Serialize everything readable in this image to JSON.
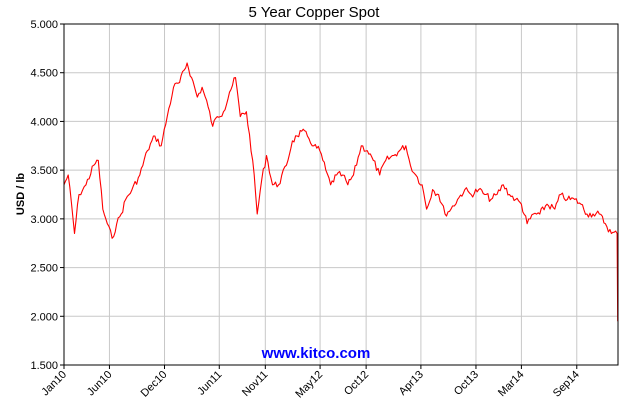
{
  "chart_data": {
    "type": "line",
    "title": "5 Year Copper Spot",
    "xlabel": "",
    "ylabel": "USD / lb",
    "ylim": [
      1.5,
      5.0
    ],
    "yticks": [
      "1.500",
      "2.000",
      "2.500",
      "3.000",
      "3.500",
      "4.000",
      "4.500",
      "5.000"
    ],
    "xticks": [
      "Jan10",
      "Jun10",
      "Dec10",
      "Jun11",
      "Nov11",
      "May12",
      "Oct12",
      "Apr13",
      "Oct13",
      "Mar14",
      "Sep14"
    ],
    "grid": true,
    "watermark": "www.kitco.com",
    "colors": {
      "series": "#ff0000",
      "grid": "#c8c8c8",
      "watermark": "#0000ff",
      "axis": "#000000"
    },
    "series": [
      {
        "name": "",
        "points": [
          [
            "2010-01-01",
            3.35
          ],
          [
            "2010-01-15",
            3.45
          ],
          [
            "2010-02-05",
            2.85
          ],
          [
            "2010-02-20",
            3.25
          ],
          [
            "2010-03-15",
            3.35
          ],
          [
            "2010-04-10",
            3.55
          ],
          [
            "2010-04-25",
            3.6
          ],
          [
            "2010-05-10",
            3.1
          ],
          [
            "2010-05-25",
            2.95
          ],
          [
            "2010-06-10",
            2.8
          ],
          [
            "2010-06-25",
            2.95
          ],
          [
            "2010-07-10",
            3.05
          ],
          [
            "2010-07-25",
            3.2
          ],
          [
            "2010-08-15",
            3.3
          ],
          [
            "2010-09-10",
            3.45
          ],
          [
            "2010-10-05",
            3.7
          ],
          [
            "2010-10-30",
            3.85
          ],
          [
            "2010-11-20",
            3.75
          ],
          [
            "2010-12-10",
            4.05
          ],
          [
            "2010-12-31",
            4.35
          ],
          [
            "2011-01-20",
            4.4
          ],
          [
            "2011-02-14",
            4.6
          ],
          [
            "2011-03-01",
            4.45
          ],
          [
            "2011-03-20",
            4.25
          ],
          [
            "2011-04-05",
            4.35
          ],
          [
            "2011-04-25",
            4.15
          ],
          [
            "2011-05-10",
            3.95
          ],
          [
            "2011-05-25",
            4.05
          ],
          [
            "2011-06-15",
            4.1
          ],
          [
            "2011-07-05",
            4.3
          ],
          [
            "2011-07-25",
            4.45
          ],
          [
            "2011-08-10",
            4.05
          ],
          [
            "2011-08-30",
            4.1
          ],
          [
            "2011-09-20",
            3.6
          ],
          [
            "2011-10-05",
            3.05
          ],
          [
            "2011-10-20",
            3.4
          ],
          [
            "2011-11-05",
            3.65
          ],
          [
            "2011-11-25",
            3.35
          ],
          [
            "2011-12-15",
            3.35
          ],
          [
            "2012-01-10",
            3.55
          ],
          [
            "2012-01-30",
            3.8
          ],
          [
            "2012-02-15",
            3.85
          ],
          [
            "2012-03-01",
            3.9
          ],
          [
            "2012-03-20",
            3.85
          ],
          [
            "2012-04-10",
            3.75
          ],
          [
            "2012-04-30",
            3.7
          ],
          [
            "2012-05-20",
            3.5
          ],
          [
            "2012-06-05",
            3.35
          ],
          [
            "2012-06-25",
            3.45
          ],
          [
            "2012-07-15",
            3.45
          ],
          [
            "2012-08-01",
            3.35
          ],
          [
            "2012-08-20",
            3.45
          ],
          [
            "2012-09-15",
            3.75
          ],
          [
            "2012-10-05",
            3.7
          ],
          [
            "2012-10-25",
            3.6
          ],
          [
            "2012-11-15",
            3.45
          ],
          [
            "2012-12-05",
            3.6
          ],
          [
            "2013-01-01",
            3.65
          ],
          [
            "2013-01-20",
            3.7
          ],
          [
            "2013-02-10",
            3.75
          ],
          [
            "2013-02-25",
            3.55
          ],
          [
            "2013-03-15",
            3.45
          ],
          [
            "2013-04-05",
            3.35
          ],
          [
            "2013-04-20",
            3.1
          ],
          [
            "2013-05-10",
            3.3
          ],
          [
            "2013-05-30",
            3.25
          ],
          [
            "2013-06-20",
            3.05
          ],
          [
            "2013-07-10",
            3.1
          ],
          [
            "2013-08-01",
            3.2
          ],
          [
            "2013-08-25",
            3.3
          ],
          [
            "2013-09-15",
            3.25
          ],
          [
            "2013-10-10",
            3.3
          ],
          [
            "2013-10-30",
            3.25
          ],
          [
            "2013-11-20",
            3.2
          ],
          [
            "2013-12-10",
            3.25
          ],
          [
            "2013-12-31",
            3.35
          ],
          [
            "2014-01-20",
            3.25
          ],
          [
            "2014-02-10",
            3.2
          ],
          [
            "2014-03-01",
            3.15
          ],
          [
            "2014-03-20",
            2.95
          ],
          [
            "2014-04-10",
            3.05
          ],
          [
            "2014-05-01",
            3.05
          ],
          [
            "2014-05-25",
            3.15
          ],
          [
            "2014-06-20",
            3.1
          ],
          [
            "2014-07-10",
            3.25
          ],
          [
            "2014-08-01",
            3.2
          ],
          [
            "2014-08-25",
            3.2
          ],
          [
            "2014-09-15",
            3.15
          ],
          [
            "2014-10-05",
            3.05
          ],
          [
            "2014-10-25",
            3.05
          ],
          [
            "2014-11-15",
            3.05
          ],
          [
            "2014-12-05",
            2.95
          ],
          [
            "2014-12-25",
            2.85
          ],
          [
            "2015-01-13",
            2.85
          ],
          [
            "2015-01-15",
            1.95
          ]
        ]
      }
    ]
  }
}
